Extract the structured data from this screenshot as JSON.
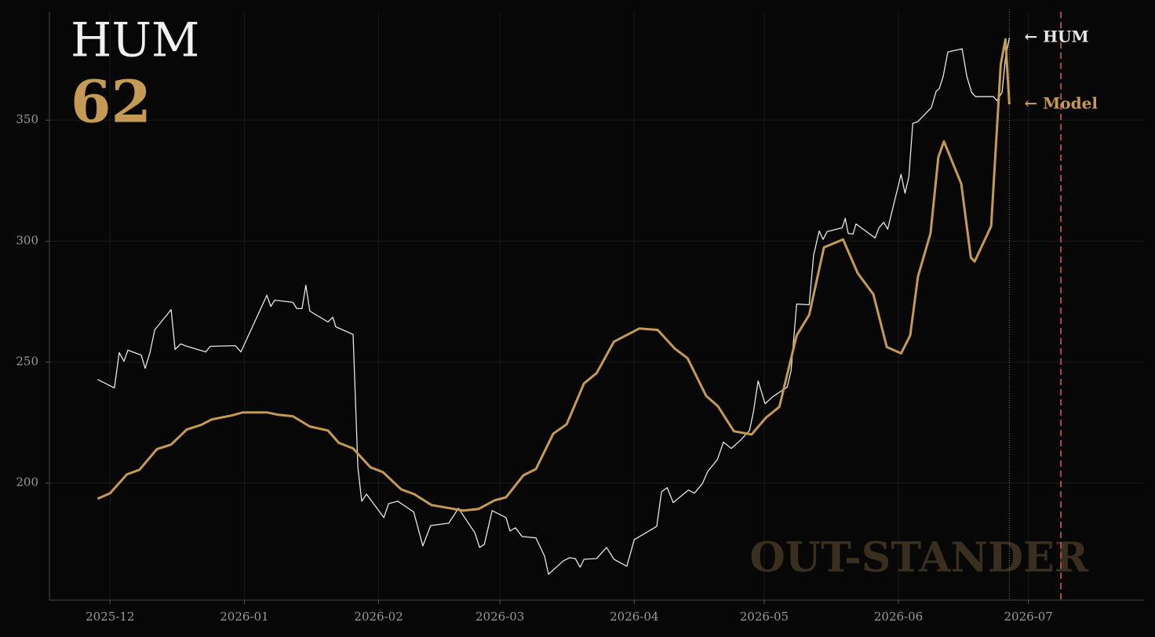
{
  "chart_data": {
    "type": "line",
    "title": "HUM",
    "score": 62,
    "watermark": "OUT-STANDER",
    "xlim": [
      0,
      252.5
    ],
    "ylim": [
      151.6,
      394.8
    ],
    "xticks": [
      {
        "value": 14,
        "label": "2025-12"
      },
      {
        "value": 45,
        "label": "2026-01"
      },
      {
        "value": 76,
        "label": "2026-02"
      },
      {
        "value": 104,
        "label": "2026-03"
      },
      {
        "value": 135,
        "label": "2026-04"
      },
      {
        "value": 165,
        "label": "2026-05"
      },
      {
        "value": 196,
        "label": "2026-06"
      },
      {
        "value": 226,
        "label": "2026-07"
      }
    ],
    "yticks": [
      200,
      250,
      300,
      350
    ],
    "grid": true,
    "reference_lines": [
      {
        "x": 221.6,
        "color": "#777777"
      },
      {
        "x": 233.5,
        "color": "#b04a4a"
      }
    ],
    "series": [
      {
        "name": "HUM",
        "label": "← HUM",
        "color": "#e6e6e6",
        "width": 1.3,
        "x": [
          11.1,
          15.0,
          16.1,
          17.2,
          18.1,
          21.2,
          22.1,
          23.2,
          24.3,
          28.1,
          29.0,
          30.3,
          31.3,
          36.1,
          37.1,
          42.9,
          44.2,
          50.2,
          51.1,
          52.0,
          56.2,
          57.1,
          58.3,
          59.2,
          60.1,
          64.3,
          65.4,
          66.1,
          70.1,
          71.2,
          72.1,
          73.2,
          77.2,
          78.3,
          80.4,
          84.1,
          86.2,
          88.0,
          92.2,
          94.4,
          98.2,
          99.3,
          100.4,
          102.2,
          105.4,
          106.3,
          107.6,
          109.1,
          112.3,
          114.3,
          115.2,
          118.7,
          120.1,
          121.4,
          122.5,
          123.4,
          126.3,
          128.6,
          130.3,
          133.3,
          135.0,
          140.2,
          141.3,
          142.6,
          144.0,
          147.5,
          148.9,
          150.7,
          152.0,
          154.2,
          155.6,
          157.4,
          159.6,
          161.6,
          162.5,
          163.6,
          165.2,
          167.0,
          170.3,
          171.2,
          172.5,
          175.4,
          176.4,
          177.7,
          178.6,
          179.5,
          183.0,
          183.7,
          184.4,
          185.5,
          186.2,
          190.6,
          191.5,
          192.6,
          193.5,
          196.6,
          197.5,
          198.4,
          199.3,
          200.4,
          203.6,
          204.7,
          205.4,
          206.3,
          207.4,
          210.7,
          211.8,
          212.9,
          213.8,
          217.9,
          218.7,
          219.9,
          220.7,
          221.6
        ],
        "values": [
          242.8,
          239.3,
          253.9,
          250.3,
          254.9,
          252.9,
          247.4,
          253.9,
          263.3,
          271.7,
          255.2,
          257.5,
          256.8,
          254.2,
          256.5,
          256.8,
          254.2,
          277.6,
          273.0,
          275.6,
          274.7,
          272.1,
          272.1,
          281.8,
          271.1,
          266.6,
          268.5,
          264.6,
          261.4,
          206.5,
          192.5,
          195.4,
          185.7,
          191.5,
          192.5,
          188.0,
          174.0,
          182.4,
          183.4,
          189.6,
          179.5,
          173.4,
          174.7,
          188.6,
          185.7,
          180.2,
          181.5,
          177.9,
          177.3,
          169.8,
          162.3,
          167.9,
          169.1,
          168.8,
          165.2,
          168.5,
          168.8,
          173.4,
          168.5,
          165.6,
          176.6,
          182.1,
          196.4,
          198.1,
          191.9,
          197.1,
          195.8,
          199.7,
          204.9,
          209.7,
          216.9,
          214.3,
          217.8,
          221.7,
          229.2,
          242.2,
          232.8,
          235.7,
          239.6,
          246.4,
          274.0,
          273.7,
          294.1,
          304.2,
          300.7,
          303.9,
          305.5,
          309.4,
          303.2,
          302.9,
          307.1,
          301.3,
          305.5,
          307.8,
          304.9,
          327.6,
          319.8,
          326.6,
          348.7,
          349.3,
          355.2,
          362.0,
          363.0,
          367.9,
          378.2,
          379.5,
          367.9,
          361.4,
          359.7,
          359.7,
          358.1,
          361.4,
          375.6,
          384.1
        ]
      },
      {
        "name": "Model",
        "label": "← Model",
        "color": "#c49a55",
        "width": 3,
        "x": [
          11.1,
          14.0,
          17.9,
          20.8,
          24.8,
          28.1,
          31.7,
          35.0,
          37.5,
          42.0,
          44.7,
          50.2,
          52.9,
          56.2,
          60.1,
          64.3,
          66.8,
          70.1,
          74.1,
          77.0,
          81.2,
          84.2,
          88.2,
          92.4,
          95.5,
          99.1,
          102.7,
          105.4,
          109.4,
          112.3,
          116.3,
          119.4,
          123.4,
          126.3,
          130.3,
          133.5,
          136.2,
          140.4,
          144.4,
          147.3,
          151.6,
          154.3,
          158.0,
          162.1,
          165.4,
          168.5,
          172.5,
          175.4,
          178.8,
          183.2,
          186.6,
          190.2,
          193.3,
          196.6,
          198.7,
          200.5,
          203.4,
          205.2,
          206.5,
          210.5,
          212.7,
          213.6,
          217.4,
          219.6,
          220.7,
          221.6
        ],
        "values": [
          193.5,
          195.8,
          203.6,
          205.5,
          214.0,
          215.9,
          222.1,
          224.0,
          226.3,
          227.9,
          229.2,
          229.2,
          228.2,
          227.6,
          223.4,
          221.7,
          216.6,
          214.3,
          206.5,
          204.5,
          197.4,
          195.4,
          190.9,
          189.6,
          188.6,
          189.3,
          192.8,
          194.1,
          203.2,
          205.8,
          220.4,
          224.3,
          241.2,
          245.4,
          258.4,
          261.4,
          263.9,
          263.3,
          255.5,
          251.6,
          236.0,
          231.8,
          221.4,
          220.1,
          227.0,
          231.5,
          261.0,
          269.5,
          297.4,
          300.7,
          286.7,
          278.0,
          256.2,
          253.6,
          261.0,
          285.4,
          303.2,
          334.7,
          341.2,
          323.7,
          293.2,
          291.6,
          306.2,
          373.0,
          383.4,
          356.5
        ]
      }
    ]
  }
}
